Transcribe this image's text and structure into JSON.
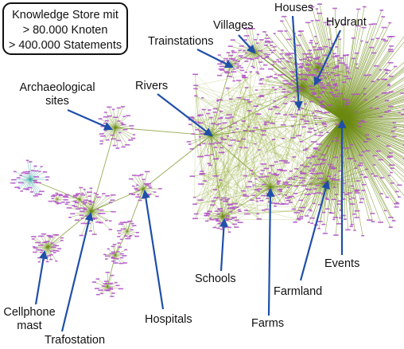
{
  "info_box": {
    "line1": "Knowledge Store mit",
    "line2": "> 80.000 Knoten",
    "line3": "> 400.000 Statements"
  },
  "labels": {
    "trainstations": "Trainstations",
    "villages": "Villages",
    "houses": "Houses",
    "hydrant": "Hydrant",
    "archaeological_line1": "Archaeological",
    "archaeological_line2": "sites",
    "rivers": "Rivers",
    "schools": "Schools",
    "events": "Events",
    "farmland": "Farmland",
    "farms": "Farms",
    "hospitals": "Hospitals",
    "cellphone_line1": "Cellphone",
    "cellphone_line2": "mast",
    "trafostation": "Trafostation"
  },
  "colors": {
    "edge": "#6b8a10",
    "edge_light": "#8fa832",
    "node": "#b04fc8",
    "node_teal": "#3aa6a0",
    "arrow": "#1f4fa8",
    "text": "#111111"
  }
}
